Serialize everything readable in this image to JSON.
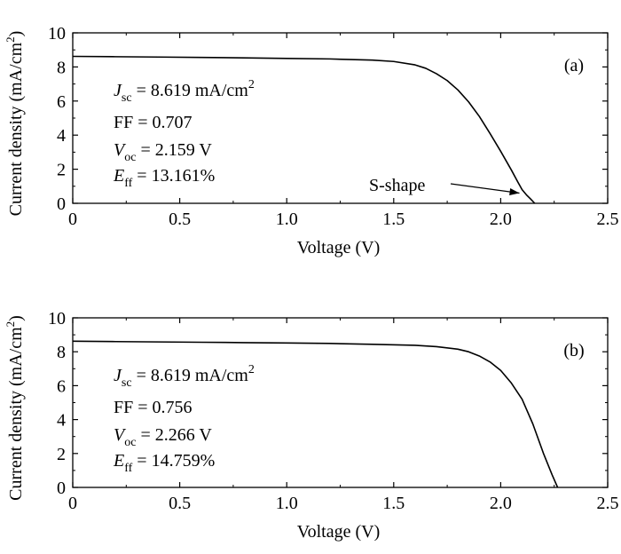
{
  "chart_data": [
    {
      "type": "line",
      "panel_label": "(a)",
      "xlabel": "Voltage (V)",
      "ylabel": "Current density (mA/cm²)",
      "xlim": [
        0,
        2.5
      ],
      "ylim": [
        0,
        10
      ],
      "xticks": [
        0,
        0.5,
        1.0,
        1.5,
        2.0,
        2.5
      ],
      "xtick_labels": [
        "0",
        "0.5",
        "1.0",
        "1.5",
        "2.0",
        "2.5"
      ],
      "yticks": [
        0,
        2,
        4,
        6,
        8,
        10
      ],
      "ytick_labels": [
        "0",
        "2",
        "4",
        "6",
        "8",
        "10"
      ],
      "grid": false,
      "series": [
        {
          "x": [
            0,
            0.2,
            0.4,
            0.6,
            0.8,
            1.0,
            1.2,
            1.4,
            1.5,
            1.6,
            1.65,
            1.7,
            1.75,
            1.8,
            1.85,
            1.9,
            1.95,
            2.0,
            2.05,
            2.08,
            2.1,
            2.12,
            2.14,
            2.159
          ],
          "y": [
            8.62,
            8.6,
            8.58,
            8.56,
            8.53,
            8.5,
            8.47,
            8.4,
            8.32,
            8.12,
            7.92,
            7.6,
            7.2,
            6.65,
            5.95,
            5.1,
            4.1,
            3.05,
            1.95,
            1.25,
            0.8,
            0.5,
            0.25,
            0
          ]
        }
      ],
      "annotations": [
        {
          "jsc_label": "J",
          "jsc_sub": "sc",
          "jsc_value": " = 8.619 mA/cm",
          "jsc_sup": "2"
        },
        {
          "ff": "FF = 0.707"
        },
        {
          "voc_label": "V",
          "voc_sub": "oc",
          "voc_value": " = 2.159 V"
        },
        {
          "eff_label": "E",
          "eff_sub": "ff",
          "eff_value": " = 13.161%"
        }
      ],
      "arrow_annotation": {
        "text": "S-shape",
        "points_to": {
          "x": 2.1,
          "y": 0.6
        }
      }
    },
    {
      "type": "line",
      "panel_label": "(b)",
      "xlabel": "Voltage (V)",
      "ylabel": "Current density (mA/cm²)",
      "xlim": [
        0,
        2.5
      ],
      "ylim": [
        0,
        10
      ],
      "xticks": [
        0,
        0.5,
        1.0,
        1.5,
        2.0,
        2.5
      ],
      "xtick_labels": [
        "0",
        "0.5",
        "1.0",
        "1.5",
        "2.0",
        "2.5"
      ],
      "yticks": [
        0,
        2,
        4,
        6,
        8,
        10
      ],
      "ytick_labels": [
        "0",
        "2",
        "4",
        "6",
        "8",
        "10"
      ],
      "grid": false,
      "series": [
        {
          "x": [
            0,
            0.2,
            0.4,
            0.6,
            0.8,
            1.0,
            1.2,
            1.4,
            1.6,
            1.7,
            1.8,
            1.85,
            1.9,
            1.95,
            2.0,
            2.05,
            2.1,
            2.15,
            2.2,
            2.24,
            2.266
          ],
          "y": [
            8.62,
            8.6,
            8.58,
            8.56,
            8.54,
            8.52,
            8.49,
            8.44,
            8.38,
            8.3,
            8.15,
            8.0,
            7.75,
            7.4,
            6.9,
            6.15,
            5.2,
            3.75,
            2.0,
            0.75,
            0
          ]
        }
      ],
      "annotations": [
        {
          "jsc_label": "J",
          "jsc_sub": "sc",
          "jsc_value": " = 8.619 mA/cm",
          "jsc_sup": "2"
        },
        {
          "ff": "FF = 0.756"
        },
        {
          "voc_label": "V",
          "voc_sub": "oc",
          "voc_value": " = 2.266 V"
        },
        {
          "eff_label": "E",
          "eff_sub": "ff",
          "eff_value": " = 14.759%"
        }
      ]
    }
  ]
}
